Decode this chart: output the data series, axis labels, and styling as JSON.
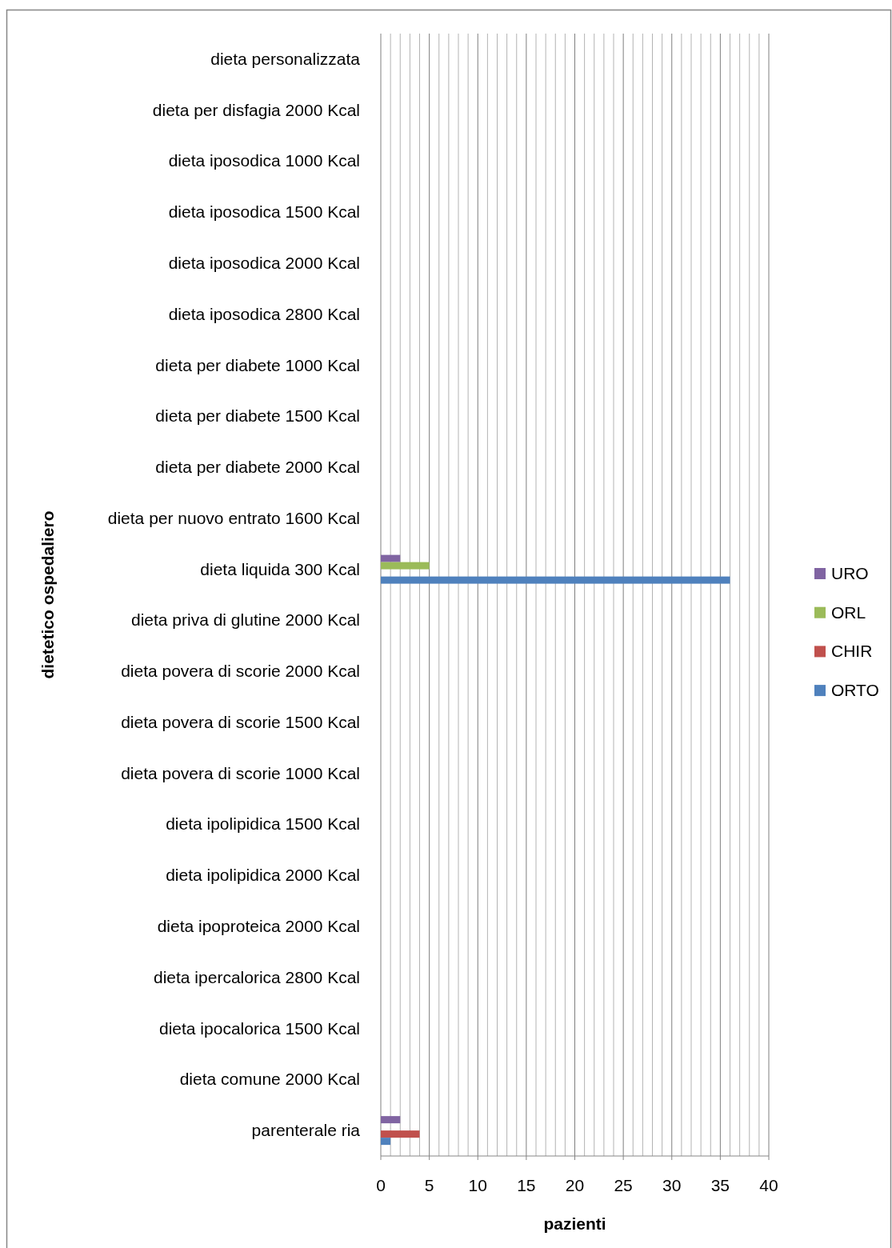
{
  "chart_data": {
    "type": "bar",
    "orientation": "horizontal",
    "xlabel": "pazienti",
    "ylabel": "dietetico ospedaliero",
    "categories": [
      "dieta personalizzata",
      "dieta per disfagia 2000 Kcal",
      "dieta iposodica 1000 Kcal",
      "dieta iposodica 1500 Kcal",
      "dieta iposodica 2000 Kcal",
      "dieta iposodica 2800 Kcal",
      "dieta per diabete 1000 Kcal",
      "dieta per diabete 1500 Kcal",
      "dieta per diabete 2000 Kcal",
      "dieta per nuovo entrato 1600 Kcal",
      "dieta liquida 300 Kcal",
      "dieta priva di glutine 2000 Kcal",
      "dieta povera di scorie 2000 Kcal",
      "dieta povera di scorie 1500 Kcal",
      "dieta povera di scorie 1000 Kcal",
      "dieta ipolipidica 1500 Kcal",
      "dieta ipolipidica 2000 Kcal",
      "dieta ipoproteica 2000 Kcal",
      "dieta ipercalorica 2800 Kcal",
      "dieta ipocalorica 1500 Kcal",
      "dieta comune 2000 Kcal",
      "parenterale ria"
    ],
    "series": [
      {
        "name": "URO",
        "color": "#8064a2",
        "values": [
          0,
          0,
          0,
          0,
          0,
          0,
          0,
          0,
          0,
          0,
          2,
          0,
          0,
          0,
          0,
          0,
          0,
          0,
          0,
          0,
          0,
          2
        ]
      },
      {
        "name": "ORL",
        "color": "#9bbb59",
        "values": [
          0,
          0,
          0,
          0,
          0,
          0,
          0,
          0,
          0,
          0,
          5,
          0,
          0,
          0,
          0,
          0,
          0,
          0,
          0,
          0,
          0,
          0
        ]
      },
      {
        "name": "CHIR",
        "color": "#c0504d",
        "values": [
          0,
          0,
          0,
          0,
          0,
          0,
          0,
          0,
          0,
          0,
          0,
          0,
          0,
          0,
          0,
          0,
          0,
          0,
          0,
          0,
          0,
          4
        ]
      },
      {
        "name": "ORTO",
        "color": "#4f81bd",
        "values": [
          0,
          0,
          0,
          0,
          0,
          0,
          0,
          0,
          0,
          0,
          36,
          0,
          0,
          0,
          0,
          0,
          0,
          0,
          0,
          0,
          0,
          1
        ]
      }
    ],
    "xlim": [
      0,
      40
    ],
    "xticks": [
      0,
      {
        "value": 1,
        "label": null
      },
      {
        "value": 2,
        "label": null
      },
      {
        "value": 3,
        "label": null
      },
      {
        "value": 4,
        "label": null
      },
      5,
      {
        "value": 6,
        "label": null
      },
      {
        "value": 7,
        "label": null
      },
      {
        "value": 8,
        "label": null
      },
      {
        "value": 9,
        "label": null
      },
      10,
      {
        "value": 11,
        "label": null
      },
      {
        "value": 12,
        "label": null
      },
      {
        "value": 13,
        "label": null
      },
      {
        "value": 14,
        "label": null
      },
      15,
      {
        "value": 16,
        "label": null
      },
      {
        "value": 17,
        "label": null
      },
      {
        "value": 18,
        "label": null
      },
      {
        "value": 19,
        "label": null
      },
      20,
      {
        "value": 21,
        "label": null
      },
      {
        "value": 22,
        "label": null
      },
      {
        "value": 23,
        "label": null
      },
      {
        "value": 24,
        "label": null
      },
      25,
      {
        "value": 26,
        "label": null
      },
      {
        "value": 27,
        "label": null
      },
      {
        "value": 28,
        "label": null
      },
      {
        "value": 29,
        "label": null
      },
      30,
      {
        "value": 31,
        "label": null
      },
      {
        "value": 32,
        "label": null
      },
      {
        "value": 33,
        "label": null
      },
      {
        "value": 34,
        "label": null
      },
      35,
      {
        "value": 36,
        "label": null
      },
      {
        "value": 37,
        "label": null
      },
      {
        "value": 38,
        "label": null
      },
      {
        "value": 39,
        "label": null
      },
      40
    ],
    "grid": "x",
    "legend": "right"
  }
}
